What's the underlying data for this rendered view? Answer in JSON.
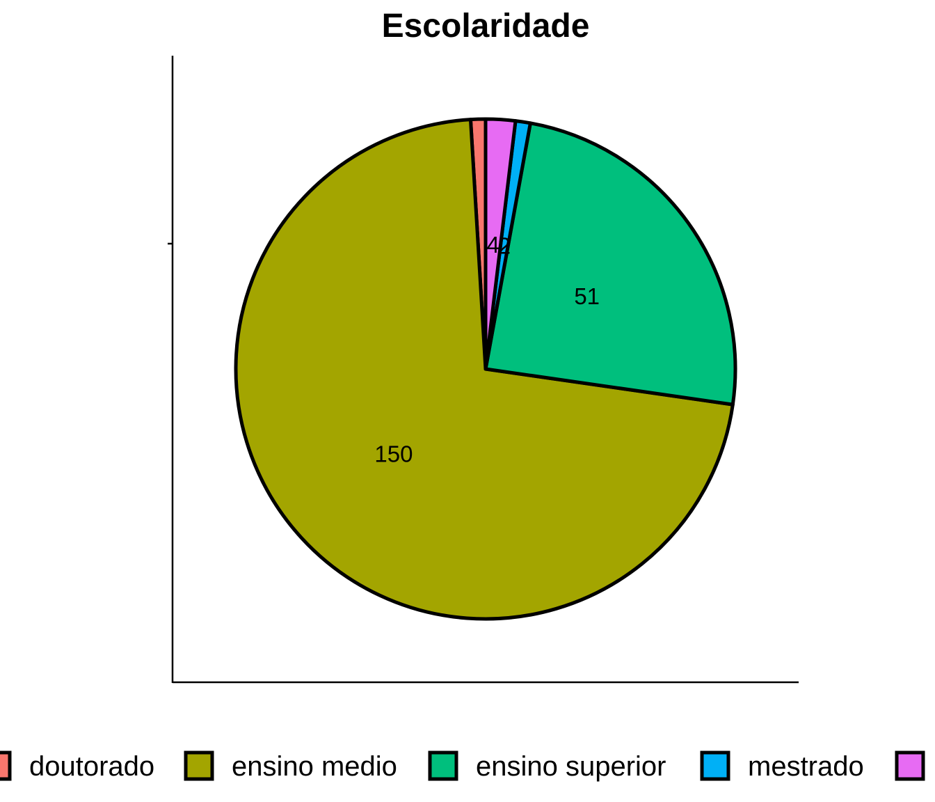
{
  "chart_data": {
    "type": "pie",
    "title": "Escolaridade",
    "xlabel": "",
    "ylabel": "",
    "legend_position": "bottom",
    "slices": [
      {
        "label": "doutorado",
        "value": 2,
        "color": "#F8766D",
        "data_label": ""
      },
      {
        "label": "ensino medio",
        "value": 150,
        "color": "#A3A500",
        "data_label": "150"
      },
      {
        "label": "ensino superior",
        "value": 51,
        "color": "#00BF7D",
        "data_label": "51"
      },
      {
        "label": "mestrado",
        "value": 2,
        "color": "#00B0F6",
        "data_label": "2"
      },
      {
        "label": "",
        "value": 4,
        "color": "#E76BF3",
        "data_label": "4"
      }
    ]
  }
}
